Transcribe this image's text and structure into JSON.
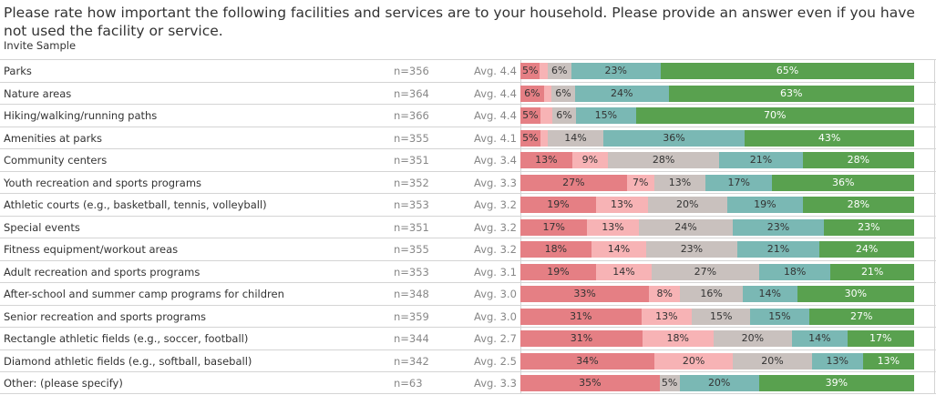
{
  "header": {
    "title": "Please rate how important the following facilities and services are to your household. Please provide an answer even if you have not used the facility or service.",
    "subtitle": "Invite Sample"
  },
  "colors": {
    "s1": "#e57f84",
    "s2": "#f7b3b5",
    "s3": "#c9c1be",
    "s4": "#7ab8b4",
    "s5": "#59a14f"
  },
  "chart_data": {
    "type": "bar",
    "stacked": true,
    "orientation": "horizontal",
    "title": "Please rate how important the following facilities and services are to your household. Please provide an answer even if you have not used the facility or service.",
    "subtitle": "Invite Sample",
    "series_order": [
      "1",
      "2",
      "3",
      "4",
      "5"
    ],
    "rows": [
      {
        "label": "Parks",
        "n": "n=356",
        "avg": "Avg. 4.4",
        "values": [
          5,
          2,
          6,
          23,
          65
        ]
      },
      {
        "label": "Nature areas",
        "n": "n=364",
        "avg": "Avg. 4.4",
        "values": [
          6,
          2,
          6,
          24,
          63
        ]
      },
      {
        "label": "Hiking/walking/running paths",
        "n": "n=366",
        "avg": "Avg. 4.4",
        "values": [
          5,
          3,
          6,
          15,
          70
        ]
      },
      {
        "label": "Amenities at parks",
        "n": "n=355",
        "avg": "Avg. 4.1",
        "values": [
          5,
          2,
          14,
          36,
          43
        ]
      },
      {
        "label": "Community centers",
        "n": "n=351",
        "avg": "Avg. 3.4",
        "values": [
          13,
          9,
          28,
          21,
          28
        ]
      },
      {
        "label": "Youth recreation and sports programs",
        "n": "n=352",
        "avg": "Avg. 3.3",
        "values": [
          27,
          7,
          13,
          17,
          36
        ]
      },
      {
        "label": "Athletic courts (e.g., basketball, tennis, volleyball)",
        "n": "n=353",
        "avg": "Avg. 3.2",
        "values": [
          19,
          13,
          20,
          19,
          28
        ]
      },
      {
        "label": "Special events",
        "n": "n=351",
        "avg": "Avg. 3.2",
        "values": [
          17,
          13,
          24,
          23,
          23
        ]
      },
      {
        "label": "Fitness equipment/workout areas",
        "n": "n=355",
        "avg": "Avg. 3.2",
        "values": [
          18,
          14,
          23,
          21,
          24
        ]
      },
      {
        "label": "Adult recreation and sports programs",
        "n": "n=353",
        "avg": "Avg. 3.1",
        "values": [
          19,
          14,
          27,
          18,
          21
        ]
      },
      {
        "label": "After-school and summer camp programs for children",
        "n": "n=348",
        "avg": "Avg. 3.0",
        "values": [
          33,
          8,
          16,
          14,
          30
        ]
      },
      {
        "label": "Senior recreation and sports programs",
        "n": "n=359",
        "avg": "Avg. 3.0",
        "values": [
          31,
          13,
          15,
          15,
          27
        ]
      },
      {
        "label": "Rectangle athletic fields (e.g., soccer, football)",
        "n": "n=344",
        "avg": "Avg. 2.7",
        "values": [
          31,
          18,
          20,
          14,
          17
        ]
      },
      {
        "label": "Diamond athletic fields (e.g., softball, baseball)",
        "n": "n=342",
        "avg": "Avg. 2.5",
        "values": [
          34,
          20,
          20,
          13,
          13
        ]
      },
      {
        "label": "Other: (please specify)",
        "n": "n=63",
        "avg": "Avg. 3.3",
        "values": [
          35,
          0,
          5,
          20,
          39
        ]
      }
    ]
  }
}
